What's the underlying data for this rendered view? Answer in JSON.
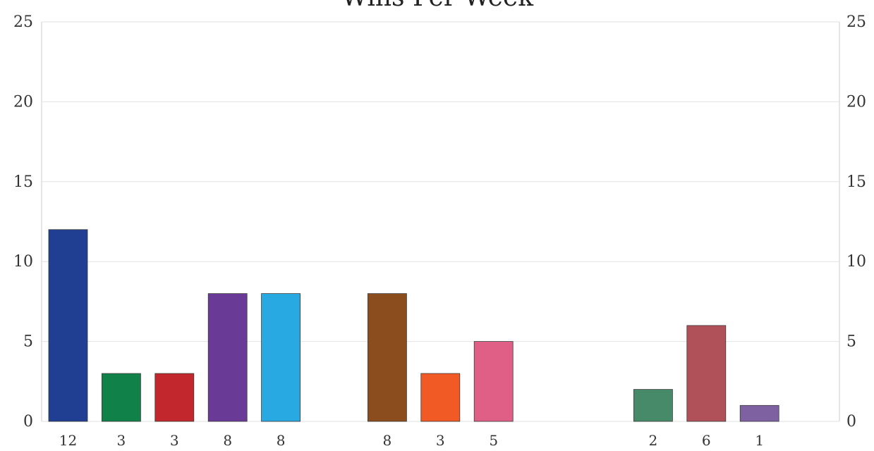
{
  "chart_data": {
    "type": "bar",
    "title": "Wins Per Week",
    "categories": [
      "12",
      "3",
      "3",
      "8",
      "8",
      "",
      "8",
      "3",
      "5",
      "",
      "",
      "2",
      "6",
      "1"
    ],
    "values": [
      12,
      3,
      3,
      8,
      8,
      null,
      8,
      3,
      5,
      null,
      null,
      2,
      6,
      1
    ],
    "colors": [
      "#213f92",
      "#11814a",
      "#c1272d",
      "#6a3b96",
      "#29a9e1",
      null,
      "#8b4d1e",
      "#f15a25",
      "#e05f87",
      null,
      null,
      "#468a69",
      "#b05159",
      "#7e61a0"
    ],
    "ylim": [
      0,
      25
    ],
    "yticks": [
      0,
      5,
      10,
      15,
      20,
      25
    ],
    "ytick_labels": [
      "0",
      "5",
      "10",
      "15",
      "20",
      "25"
    ],
    "right_axis": true,
    "grid": true,
    "legend": "none",
    "xlabel": "",
    "ylabel": ""
  }
}
